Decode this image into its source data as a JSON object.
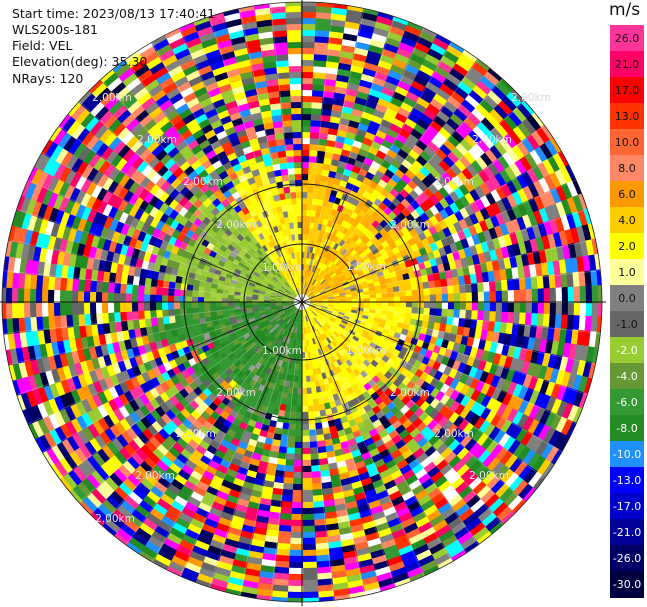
{
  "info": {
    "start_time": "Start time: 2023/08/13 17:40:41",
    "station": "WLS200s-181",
    "field": "Field: VEL",
    "elevation": "Elevation(deg): 35.30",
    "nrays": "NRays: 120"
  },
  "colorbar": {
    "unit": "m/s",
    "ticks": [
      "26.0",
      "21.0",
      "17.0",
      "13.0",
      "10.0",
      "8.0",
      "6.0",
      "4.0",
      "2.0",
      "1.0",
      "0.0",
      "-1.0",
      "-2.0",
      "-4.0",
      "-6.0",
      "-8.0",
      "-10.0",
      "-13.0",
      "-17.0",
      "-21.0",
      "-26.0",
      "-30.0"
    ],
    "colors": [
      "#ff3399",
      "#ff0066",
      "#ff0000",
      "#ff3300",
      "#ff6633",
      "#ff8866",
      "#ff9900",
      "#ffcc00",
      "#ffff00",
      "#ffff99",
      "#808080",
      "#666666",
      "#99cc33",
      "#669933",
      "#339933",
      "#228b22",
      "#1e90ff",
      "#0000ff",
      "#0000cc",
      "#000099",
      "#000066",
      "#000040"
    ]
  },
  "range_labels": {
    "r1": "1.00km",
    "r2": "2.00km"
  },
  "chart_data": {
    "type": "heatmap",
    "field": "VEL",
    "nrays": 120,
    "elevation_deg": 35.3,
    "unit": "m/s"
  }
}
